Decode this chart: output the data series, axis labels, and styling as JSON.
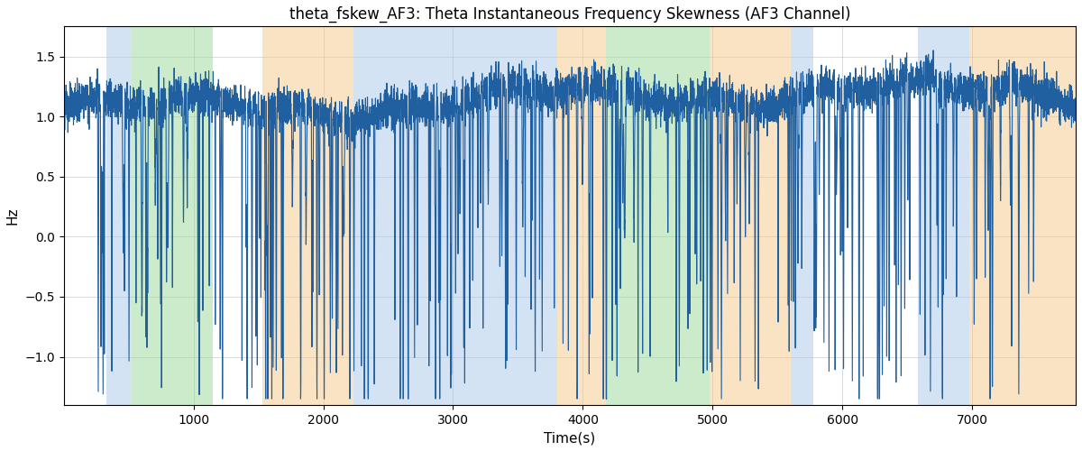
{
  "title": "theta_fskew_AF3: Theta Instantaneous Frequency Skewness (AF3 Channel)",
  "xlabel": "Time(s)",
  "ylabel": "Hz",
  "xlim": [
    0,
    7800
  ],
  "ylim": [
    -1.4,
    1.75
  ],
  "line_color": "#2060a0",
  "line_width": 0.8,
  "background_color": "#ffffff",
  "grid_color": "#aaaaaa",
  "colored_bands": [
    {
      "xmin": 330,
      "xmax": 520,
      "color": "#a8c8e8",
      "alpha": 0.5
    },
    {
      "xmin": 520,
      "xmax": 1150,
      "color": "#98d898",
      "alpha": 0.5
    },
    {
      "xmin": 1530,
      "xmax": 2230,
      "color": "#f5c888",
      "alpha": 0.5
    },
    {
      "xmin": 2230,
      "xmax": 2700,
      "color": "#a8c8e8",
      "alpha": 0.5
    },
    {
      "xmin": 2700,
      "xmax": 3800,
      "color": "#a8c8e8",
      "alpha": 0.5
    },
    {
      "xmin": 3800,
      "xmax": 4180,
      "color": "#f5c888",
      "alpha": 0.5
    },
    {
      "xmin": 4180,
      "xmax": 4730,
      "color": "#98d898",
      "alpha": 0.5
    },
    {
      "xmin": 4730,
      "xmax": 4980,
      "color": "#98d898",
      "alpha": 0.5
    },
    {
      "xmin": 4980,
      "xmax": 5600,
      "color": "#f5c888",
      "alpha": 0.5
    },
    {
      "xmin": 5600,
      "xmax": 5780,
      "color": "#a8c8e8",
      "alpha": 0.5
    },
    {
      "xmin": 6580,
      "xmax": 6980,
      "color": "#a8c8e8",
      "alpha": 0.5
    },
    {
      "xmin": 6980,
      "xmax": 7800,
      "color": "#f5c888",
      "alpha": 0.5
    }
  ],
  "yticks": [
    -1.0,
    -0.5,
    0.0,
    0.5,
    1.0,
    1.5
  ],
  "xticks": [
    1000,
    2000,
    3000,
    4000,
    5000,
    6000,
    7000
  ],
  "title_fontsize": 12,
  "label_fontsize": 11,
  "tick_fontsize": 10
}
